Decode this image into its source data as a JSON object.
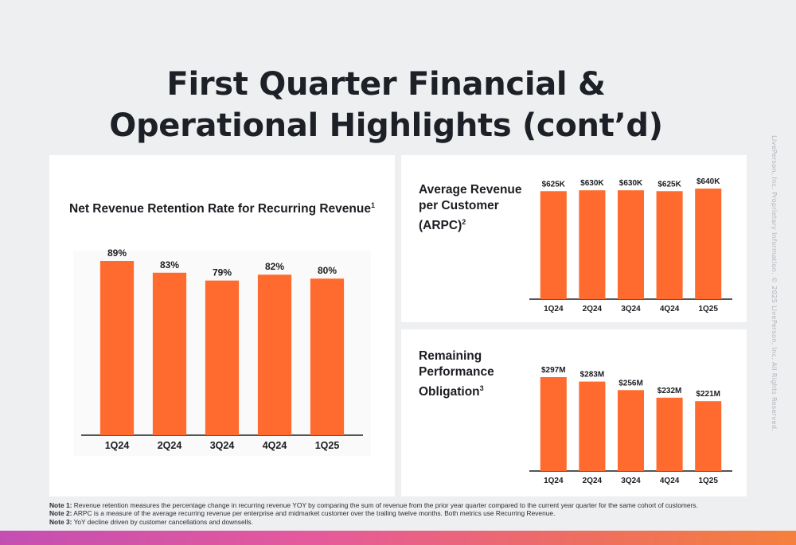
{
  "page": {
    "title_line1": "First Quarter Financial &",
    "title_line2": "Operational Highlights (cont’d)",
    "side_note": "LivePerson, Inc. Proprietary Information. © 2025 LivePerson, Inc. All Rights Reserved.",
    "notes": [
      {
        "label": "Note 1:",
        "text": " Revenue retention measures the percentage change in recurring revenue YOY by comparing the sum of revenue from the prior year quarter compared to the current year quarter for the same cohort of customers."
      },
      {
        "label": "Note 2:",
        "text": " ARPC is a measure of the average recurring revenue per enterprise and midmarket customer over the trailing twelve months.  Both metrics use Recurring Revenue."
      },
      {
        "label": "Note 3:",
        "text": " YoY decline driven by customer cancellations and downsells."
      }
    ],
    "colors": {
      "bar": "#ff6b2e",
      "axis": "#1b1d22",
      "background": "#eeeff1"
    }
  },
  "chart_data": [
    {
      "type": "bar",
      "title": "Net Revenue Retention Rate for Recurring Revenue",
      "title_sup": "1",
      "categories": [
        "1Q24",
        "2Q24",
        "3Q24",
        "4Q24",
        "1Q25"
      ],
      "values": [
        89,
        83,
        79,
        82,
        80
      ],
      "labels": [
        "89%",
        "83%",
        "79%",
        "82%",
        "80%"
      ],
      "ylim": [
        0,
        89
      ],
      "grid": false
    },
    {
      "type": "bar",
      "title": "Average Revenue per Customer (ARPC)",
      "title_sup": "2",
      "categories": [
        "1Q24",
        "2Q24",
        "3Q24",
        "4Q24",
        "1Q25"
      ],
      "values": [
        625,
        630,
        630,
        625,
        640
      ],
      "labels": [
        "$625K",
        "$630K",
        "$630K",
        "$625K",
        "$640K"
      ],
      "ylim": [
        0,
        640
      ],
      "grid": false
    },
    {
      "type": "bar",
      "title": "Remaining Performance Obligation",
      "title_sup": "3",
      "categories": [
        "1Q24",
        "2Q24",
        "3Q24",
        "4Q24",
        "1Q25"
      ],
      "values": [
        297,
        283,
        256,
        232,
        221
      ],
      "labels": [
        "$297M",
        "$283M",
        "$256M",
        "$232M",
        "$221M"
      ],
      "ylim": [
        0,
        297
      ],
      "grid": false
    }
  ]
}
